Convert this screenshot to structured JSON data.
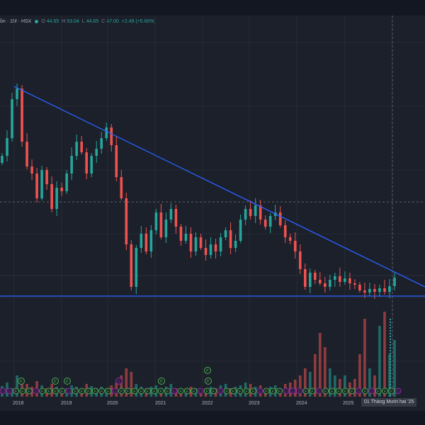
{
  "legend": {
    "symbol": "ồn · 1M · HSX",
    "open_label": "O",
    "open": "44.65",
    "high_label": "H",
    "high": "53.04",
    "low_label": "L",
    "low": "44.65",
    "close_label": "C",
    "close": "47.00",
    "change": "+2.49 (+5.60%)"
  },
  "xaxis": {
    "ticks": [
      "2018",
      "2019",
      "2020",
      "2021",
      "2022",
      "2023",
      "2024",
      "2025"
    ],
    "crosshair_label": "01 Tháng Mười hai '25"
  },
  "colors": {
    "up": "#26a69a",
    "down": "#ef5350",
    "trendline": "#2962ff",
    "support": "#2962ff",
    "background": "#1c202b",
    "marker_green": "#4caf50",
    "marker_purple": "#9c27b0",
    "marker_orange": "#ff9800"
  },
  "chart_data": {
    "type": "candlestick",
    "interval": "1M",
    "last_bar": {
      "open": 44.65,
      "high": 53.04,
      "low": 44.65,
      "close": 47.0
    },
    "markers": {
      "top_row": [
        "F",
        "F",
        "F",
        "D",
        "F",
        "F",
        "F"
      ],
      "bottom_row": [
        "D",
        "D",
        "F",
        "F",
        "F",
        "D",
        "F",
        "F",
        "F",
        "F",
        "D",
        "F",
        "F",
        "F",
        "F",
        "F",
        "F",
        "D",
        "F",
        "F",
        "F",
        "F",
        "F",
        "F",
        "F",
        "F",
        "D",
        "F",
        "F",
        "F",
        "D",
        "F",
        "F",
        "D",
        "F",
        "F",
        "F",
        "F",
        "F",
        "D",
        "F",
        "F",
        "F",
        "D",
        "D",
        "D",
        "F",
        "F",
        "D",
        "F",
        "F",
        "F",
        "F",
        "F",
        "D",
        "F",
        "D",
        "F",
        "F",
        "F",
        "D"
      ]
    }
  }
}
